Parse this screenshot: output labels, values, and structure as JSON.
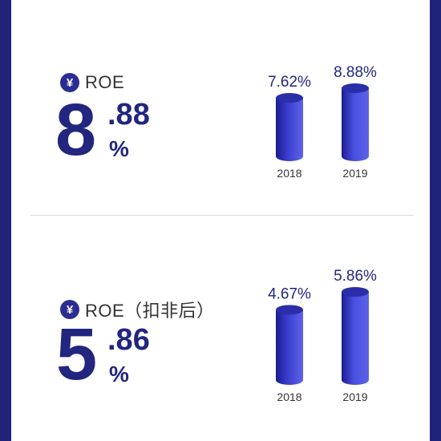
{
  "colors": {
    "frame": "#1f237a",
    "accent": "#22267f",
    "bar_2018": "#3b3fd0",
    "bar_2019": "#4a4ee0"
  },
  "metrics": [
    {
      "icon": "yen-icon",
      "icon_glyph": "¥",
      "label": "ROE",
      "value_integer": "8",
      "value_decimal": ".88",
      "value_unit": "%"
    },
    {
      "icon": "yen-icon",
      "icon_glyph": "¥",
      "label": "ROE（扣非后）",
      "value_integer": "5",
      "value_decimal": ".86",
      "value_unit": "%"
    }
  ],
  "chart_data": [
    {
      "type": "bar",
      "categories": [
        "2018",
        "2019"
      ],
      "values": [
        7.62,
        8.88
      ],
      "value_labels": [
        "7.62%",
        "8.88%"
      ],
      "ylim": [
        0,
        10
      ]
    },
    {
      "type": "bar",
      "categories": [
        "2018",
        "2019"
      ],
      "values": [
        4.67,
        5.86
      ],
      "value_labels": [
        "4.67%",
        "5.86%"
      ],
      "ylim": [
        0,
        6.5
      ]
    }
  ]
}
